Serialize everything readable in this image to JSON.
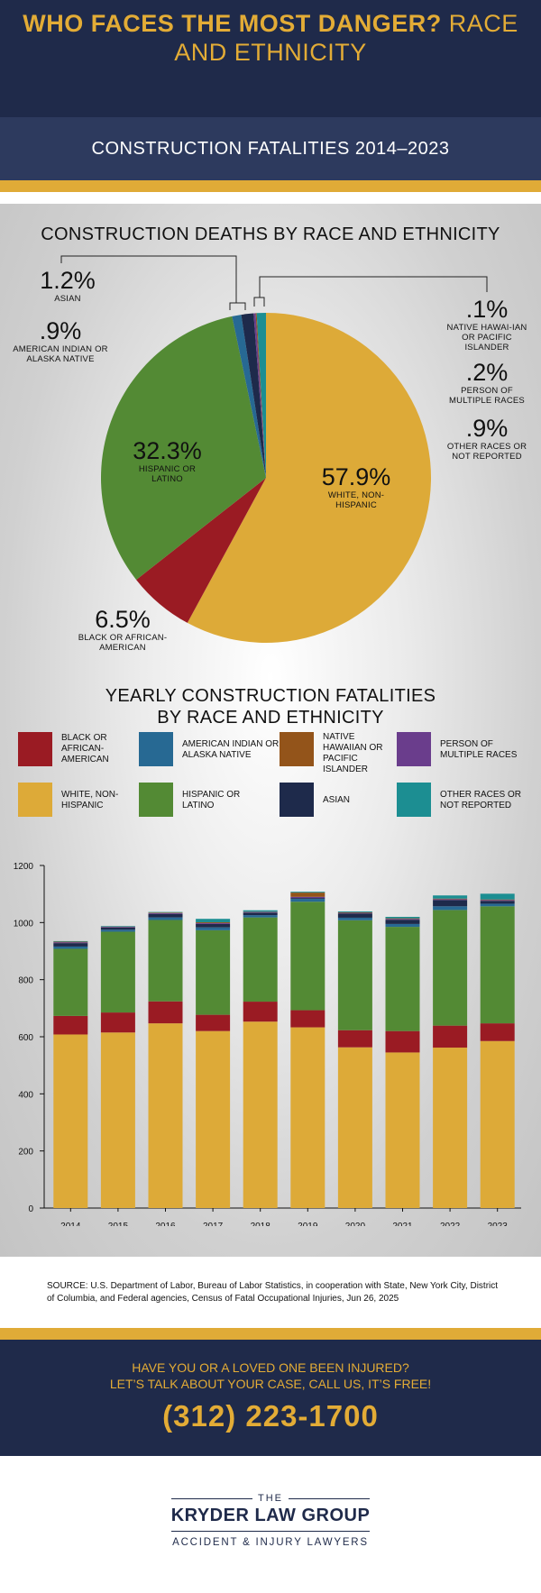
{
  "header": {
    "title_bold": "WHO FACES THE MOST DANGER?",
    "title_thin": "RACE AND ETHNICITY",
    "subtitle": "CONSTRUCTION FATALITIES  2014–2023"
  },
  "colors": {
    "navy": "#1f2a4a",
    "gold": "#e0ab37",
    "white_nonhispanic": "#ddaa38",
    "hispanic": "#538a34",
    "black": "#9a1b23",
    "american_indian": "#276993",
    "native_hawaiian": "#93541a",
    "multiple_races": "#6a3d8c",
    "asian": "#1e2a4b",
    "other_races": "#1c8e92"
  },
  "pie": {
    "title": "CONSTRUCTION DEATHS BY RACE AND ETHNICITY",
    "labels": {
      "asian": {
        "pct": "1.2%",
        "lbl": "ASIAN"
      },
      "american_indian": {
        "pct": ".9%",
        "lbl": "AMERICAN INDIAN OR ALASKA NATIVE"
      },
      "hispanic": {
        "pct": "32.3%",
        "lbl": "HISPANIC OR LATINO"
      },
      "white": {
        "pct": "57.9%",
        "lbl": "WHITE, NON-HISPANIC"
      },
      "black": {
        "pct": "6.5%",
        "lbl": "BLACK OR AFRICAN-AMERICAN"
      },
      "native_hawaiian": {
        "pct": ".1%",
        "lbl": "NATIVE HAWAI-IAN OR PACIFIC ISLANDER"
      },
      "multiple": {
        "pct": ".2%",
        "lbl": "PERSON OF MULTIPLE RACES"
      },
      "other": {
        "pct": ".9%",
        "lbl": "OTHER RACES OR NOT REPORTED"
      }
    }
  },
  "bar": {
    "title_line1": "YEARLY CONSTRUCTION FATALITIES",
    "title_line2": "BY RACE AND ETHNICITY",
    "legend": [
      {
        "key": "black",
        "label": "BLACK OR AFRICAN-AMERICAN"
      },
      {
        "key": "american_indian",
        "label": "AMERICAN INDIAN OR ALASKA NATIVE"
      },
      {
        "key": "native_hawaiian",
        "label": "NATIVE HAWAIIAN OR PACIFIC ISLANDER"
      },
      {
        "key": "multiple_races",
        "label": "PERSON OF MULTIPLE RACES"
      },
      {
        "key": "white_nonhispanic",
        "label": "WHITE, NON-HISPANIC"
      },
      {
        "key": "hispanic",
        "label": "HISPANIC OR LATINO"
      },
      {
        "key": "asian",
        "label": "ASIAN"
      },
      {
        "key": "other_races",
        "label": "OTHER RACES OR NOT REPORTED"
      }
    ]
  },
  "chart_data": [
    {
      "type": "pie",
      "title": "CONSTRUCTION DEATHS BY RACE AND ETHNICITY",
      "categories": [
        "White, Non-Hispanic",
        "Black or African-American",
        "Hispanic or Latino",
        "American Indian or Alaska Native",
        "Asian",
        "Person of Multiple Races",
        "Native Hawaiian or Pacific Islander",
        "Other Races or Not Reported"
      ],
      "values": [
        57.9,
        6.5,
        32.3,
        0.9,
        1.2,
        0.2,
        0.1,
        0.9
      ]
    },
    {
      "type": "bar",
      "stacked": true,
      "title": "YEARLY CONSTRUCTION FATALITIES BY RACE AND ETHNICITY",
      "categories": [
        "2014",
        "2015",
        "2016",
        "2017",
        "2018",
        "2019",
        "2020",
        "2021",
        "2022",
        "2023"
      ],
      "ylim": [
        0,
        1200
      ],
      "yticks": [
        0,
        200,
        400,
        600,
        800,
        1000,
        1200
      ],
      "series": [
        {
          "name": "White, Non-Hispanic",
          "key": "white_nonhispanic",
          "values": [
            608,
            615,
            647,
            620,
            653,
            633,
            563,
            545,
            562,
            585
          ]
        },
        {
          "name": "Black or African-American",
          "key": "black",
          "values": [
            65,
            70,
            77,
            57,
            70,
            60,
            60,
            75,
            77,
            62
          ]
        },
        {
          "name": "Hispanic or Latino",
          "key": "hispanic",
          "values": [
            235,
            283,
            285,
            296,
            295,
            380,
            385,
            365,
            405,
            410
          ]
        },
        {
          "name": "American Indian or Alaska Native",
          "key": "american_indian",
          "values": [
            8,
            7,
            9,
            10,
            8,
            10,
            9,
            10,
            13,
            9
          ]
        },
        {
          "name": "Asian",
          "key": "asian",
          "values": [
            12,
            8,
            12,
            12,
            9,
            3,
            15,
            15,
            22,
            10
          ]
        },
        {
          "name": "Person of Multiple Races",
          "key": "multiple_races",
          "values": [
            3,
            2,
            3,
            3,
            2,
            4,
            2,
            3,
            3,
            3
          ]
        },
        {
          "name": "Native Hawaiian or Pacific Islander",
          "key": "native_hawaiian",
          "values": [
            2,
            1,
            2,
            3,
            1,
            15,
            2,
            2,
            2,
            2
          ]
        },
        {
          "name": "Other Races or Not Reported",
          "key": "other_races",
          "values": [
            2,
            2,
            2,
            12,
            5,
            3,
            3,
            5,
            11,
            20
          ]
        }
      ]
    }
  ],
  "footer": {
    "source": "SOURCE: U.S. Department of Labor, Bureau of Labor Statistics, in cooperation with State, New York City, District of Columbia, and Federal agencies, Census of Fatal Occupational Injuries, Jun 26, 2025",
    "cta_line1": "HAVE YOU OR A LOVED ONE BEEN INJURED?",
    "cta_line2": "LET’S TALK ABOUT YOUR CASE, CALL US, IT’S FREE!",
    "phone": "(312) 223-1700"
  },
  "logo": {
    "the": "THE",
    "name": "KRYDER LAW GROUP",
    "tagline": "ACCIDENT & INJURY LAWYERS"
  }
}
